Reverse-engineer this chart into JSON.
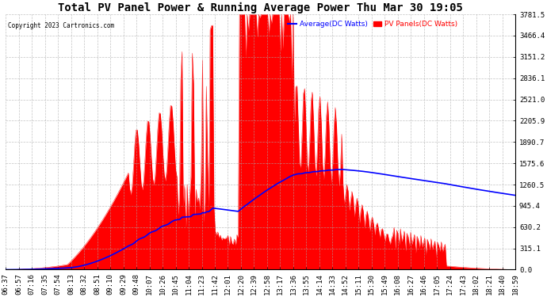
{
  "title": "Total PV Panel Power & Running Average Power Thu Mar 30 19:05",
  "copyright": "Copyright 2023 Cartronics.com",
  "legend_avg": "Average(DC Watts)",
  "legend_pv": "PV Panels(DC Watts)",
  "ymax": 3781.5,
  "ymin": 0.0,
  "yticks": [
    0.0,
    315.1,
    630.2,
    945.4,
    1260.5,
    1575.6,
    1890.7,
    2205.9,
    2521.0,
    2836.1,
    3151.2,
    3466.4,
    3781.5
  ],
  "ytick_labels": [
    "0.0",
    "315.1",
    "630.2",
    "945.4",
    "1260.5",
    "1575.6",
    "1890.7",
    "2205.9",
    "2521.0",
    "2836.1",
    "3151.2",
    "3466.4",
    "3781.5"
  ],
  "xtick_labels": [
    "06:37",
    "06:57",
    "07:16",
    "07:35",
    "07:54",
    "08:13",
    "08:32",
    "08:51",
    "09:10",
    "09:29",
    "09:48",
    "10:07",
    "10:26",
    "10:45",
    "11:04",
    "11:23",
    "11:42",
    "12:01",
    "12:20",
    "12:39",
    "12:58",
    "13:17",
    "13:36",
    "13:55",
    "14:14",
    "14:33",
    "14:52",
    "15:11",
    "15:30",
    "15:49",
    "16:08",
    "16:27",
    "16:46",
    "17:05",
    "17:24",
    "17:43",
    "18:02",
    "18:21",
    "18:40",
    "18:59"
  ],
  "bg_color": "#ffffff",
  "pv_color": "#ff0000",
  "avg_color": "#0000ff",
  "grid_color": "#aaaaaa",
  "title_fontsize": 10,
  "tick_fontsize": 6.5
}
